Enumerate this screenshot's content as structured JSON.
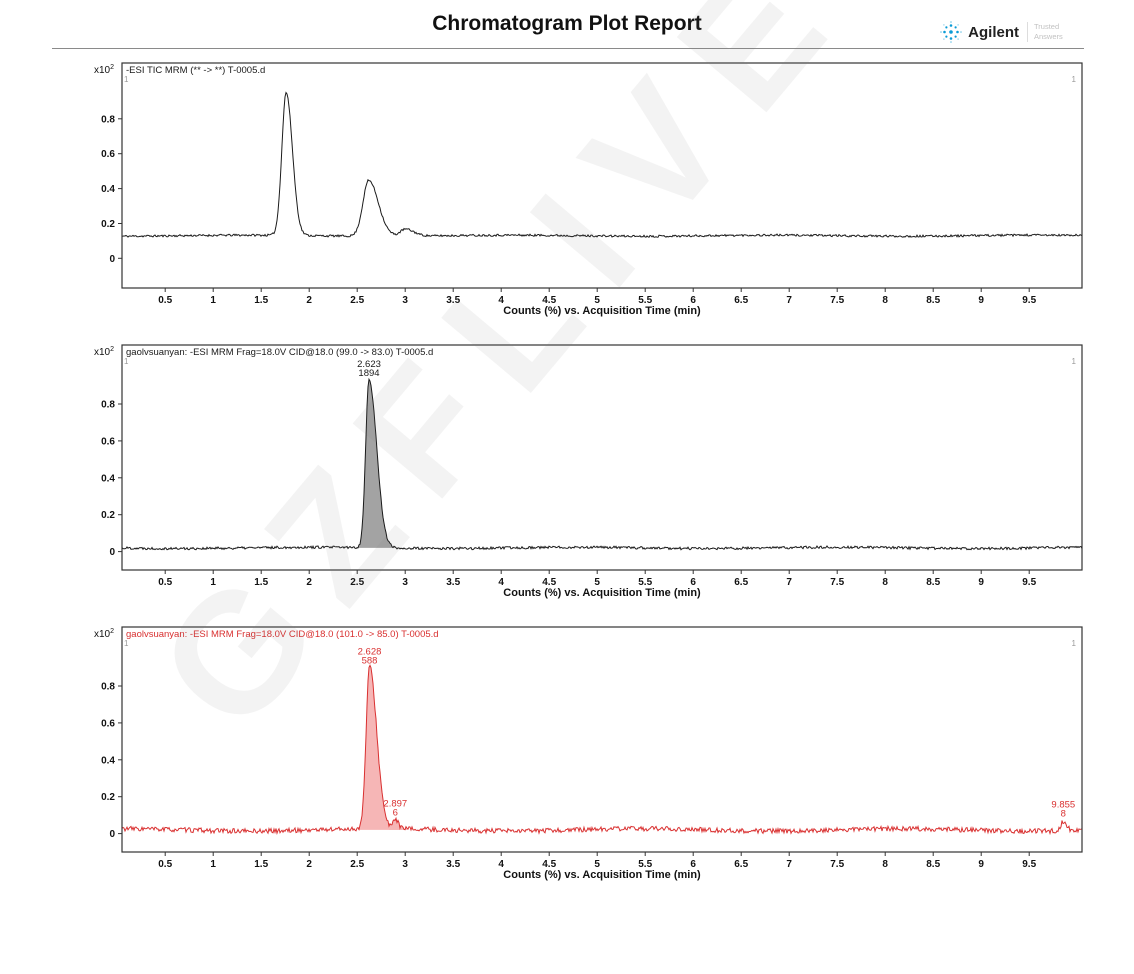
{
  "header": {
    "title": "Chromatogram Plot Report",
    "brand": "Agilent",
    "tagline": "Trusted Answers"
  },
  "watermark": "GZFLIVE",
  "chart_data": [
    {
      "type": "line",
      "title": "-ESI TIC MRM (** -> **) T-0005.d",
      "title_color": "#1a1a1a",
      "trace_color": "#1a1a1a",
      "fill_color": "none",
      "label_color": "#1a1a1a",
      "xlabel": "Counts (%) vs. Acquisition Time (min)",
      "y_scale_label": "x10",
      "y_scale_exp": "2",
      "xlim": [
        0.05,
        10.05
      ],
      "ylim": [
        -0.17,
        1.12
      ],
      "x_ticks": [
        "0.5",
        "1",
        "1.5",
        "2",
        "2.5",
        "3",
        "3.5",
        "4",
        "4.5",
        "5",
        "5.5",
        "6",
        "6.5",
        "7",
        "7.5",
        "8",
        "8.5",
        "9",
        "9.5"
      ],
      "y_ticks": [
        "0",
        "0.2",
        "0.4",
        "0.6",
        "0.8"
      ],
      "segment_markers": [
        "1",
        "1"
      ],
      "baseline": 0.13,
      "noise": 0.006,
      "peaks": [
        {
          "t": 1.76,
          "h": 0.82,
          "sl": 0.045,
          "sr": 0.065,
          "fill": false
        },
        {
          "t": 2.62,
          "h": 0.32,
          "sl": 0.06,
          "sr": 0.1,
          "fill": false
        },
        {
          "t": 3.0,
          "h": 0.04,
          "sl": 0.05,
          "sr": 0.09,
          "fill": false
        }
      ],
      "labels": []
    },
    {
      "type": "line",
      "title": "gaolvsuanyan: -ESI MRM Frag=18.0V CID@18.0 (99.0 -> 83.0) T-0005.d",
      "title_color": "#1a1a1a",
      "trace_color": "#1a1a1a",
      "fill_color": "#a3a3a3",
      "label_color": "#1a1a1a",
      "xlabel": "Counts (%) vs. Acquisition Time (min)",
      "y_scale_label": "x10",
      "y_scale_exp": "2",
      "xlim": [
        0.05,
        10.05
      ],
      "ylim": [
        -0.1,
        1.12
      ],
      "x_ticks": [
        "0.5",
        "1",
        "1.5",
        "2",
        "2.5",
        "3",
        "3.5",
        "4",
        "4.5",
        "5",
        "5.5",
        "6",
        "6.5",
        "7",
        "7.5",
        "8",
        "8.5",
        "9",
        "9.5"
      ],
      "y_ticks": [
        "0",
        "0.2",
        "0.4",
        "0.6",
        "0.8"
      ],
      "segment_markers": [
        "1",
        "1"
      ],
      "baseline": 0.02,
      "noise": 0.007,
      "peaks": [
        {
          "t": 2.623,
          "h": 0.91,
          "sl": 0.035,
          "sr": 0.08,
          "fill": true
        }
      ],
      "labels": [
        {
          "t": 2.623,
          "apex": 0.93,
          "lines": [
            "2.623",
            "1894"
          ]
        }
      ]
    },
    {
      "type": "line",
      "title": "gaolvsuanyan: -ESI MRM Frag=18.0V CID@18.0 (101.0 -> 85.0) T-0005.d",
      "title_color": "#d93030",
      "trace_color": "#d93030",
      "fill_color": "#f6b6b6",
      "label_color": "#d93030",
      "xlabel": "Counts (%) vs. Acquisition Time (min)",
      "y_scale_label": "x10",
      "y_scale_exp": "2",
      "xlim": [
        0.05,
        10.05
      ],
      "ylim": [
        -0.1,
        1.12
      ],
      "x_ticks": [
        "0.5",
        "1",
        "1.5",
        "2",
        "2.5",
        "3",
        "3.5",
        "4",
        "4.5",
        "5",
        "5.5",
        "6",
        "6.5",
        "7",
        "7.5",
        "8",
        "8.5",
        "9",
        "9.5"
      ],
      "y_ticks": [
        "0",
        "0.2",
        "0.4",
        "0.6",
        "0.8"
      ],
      "segment_markers": [
        "1",
        "1"
      ],
      "baseline": 0.02,
      "noise": 0.013,
      "peaks": [
        {
          "t": 2.628,
          "h": 0.88,
          "sl": 0.035,
          "sr": 0.075,
          "fill": true
        },
        {
          "t": 2.897,
          "h": 0.055,
          "sl": 0.02,
          "sr": 0.03,
          "fill": true
        },
        {
          "t": 9.855,
          "h": 0.05,
          "sl": 0.025,
          "sr": 0.035,
          "fill": false
        }
      ],
      "labels": [
        {
          "t": 2.628,
          "apex": 0.9,
          "lines": [
            "2.628",
            "588"
          ]
        },
        {
          "t": 2.897,
          "apex": 0.075,
          "lines": [
            "2.897",
            "6"
          ]
        },
        {
          "t": 9.855,
          "apex": 0.07,
          "lines": [
            "9.855",
            "8"
          ]
        }
      ]
    }
  ]
}
